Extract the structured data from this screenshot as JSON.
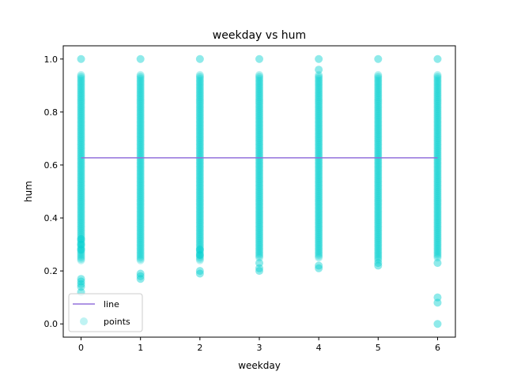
{
  "chart_data": {
    "type": "scatter",
    "title": "weekday vs hum",
    "xlabel": "weekday",
    "ylabel": "hum",
    "xlim": [
      -0.3,
      6.3
    ],
    "ylim": [
      -0.05,
      1.05
    ],
    "x_ticks": [
      0,
      1,
      2,
      3,
      4,
      5,
      6
    ],
    "y_ticks": [
      0.0,
      0.2,
      0.4,
      0.6,
      0.8,
      1.0
    ],
    "y_tick_labels": [
      "0.0",
      "0.2",
      "0.4",
      "0.6",
      "0.8",
      "1.0"
    ],
    "grid": false,
    "legend_position": "lower left",
    "series": [
      {
        "name": "line",
        "kind": "line",
        "color": "#9370DB",
        "x": [
          0,
          1,
          2,
          3,
          4,
          5,
          6
        ],
        "y": [
          0.627,
          0.627,
          0.627,
          0.627,
          0.627,
          0.627,
          0.627
        ]
      },
      {
        "name": "points",
        "kind": "scatter",
        "color": "#00CED1",
        "alpha": 0.25,
        "columns": [
          {
            "x": 0,
            "range": [
              0.24,
              0.94
            ],
            "outliers": [
              0.12,
              0.14,
              0.15,
              0.16,
              0.17,
              0.28,
              0.3,
              0.32,
              1.0
            ]
          },
          {
            "x": 1,
            "range": [
              0.24,
              0.94
            ],
            "outliers": [
              0.17,
              0.18,
              0.19,
              1.0
            ]
          },
          {
            "x": 2,
            "range": [
              0.24,
              0.94
            ],
            "outliers": [
              0.19,
              0.2,
              0.26,
              0.28,
              1.0
            ]
          },
          {
            "x": 3,
            "range": [
              0.25,
              0.94
            ],
            "outliers": [
              0.2,
              0.21,
              0.23,
              1.0
            ]
          },
          {
            "x": 4,
            "range": [
              0.25,
              0.94
            ],
            "outliers": [
              0.21,
              0.22,
              0.96,
              1.0
            ]
          },
          {
            "x": 5,
            "range": [
              0.24,
              0.94
            ],
            "outliers": [
              0.22,
              0.23,
              1.0
            ]
          },
          {
            "x": 6,
            "range": [
              0.25,
              0.94
            ],
            "outliers": [
              0.0,
              0.08,
              0.1,
              0.23,
              1.0
            ]
          }
        ]
      }
    ]
  }
}
